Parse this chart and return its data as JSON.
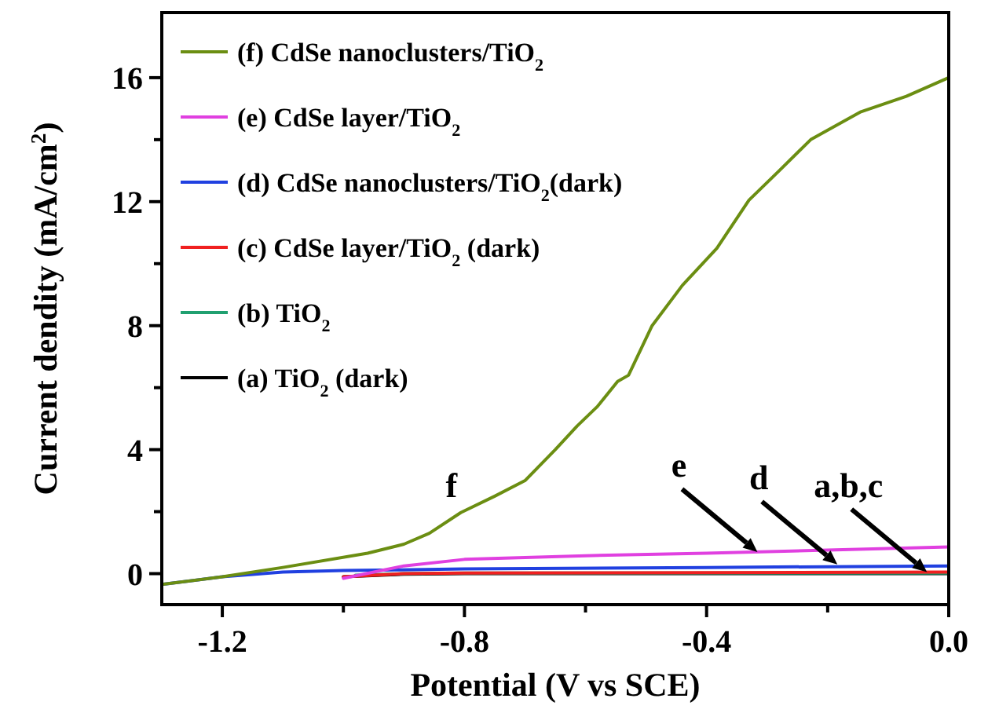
{
  "chart_data": {
    "type": "line",
    "xlabel": "Potential (V vs SCE)",
    "ylabel": "Current dendity (mA/cm$^{2}$)",
    "xlim": [
      -1.3,
      0
    ],
    "ylim": [
      -1,
      18.1
    ],
    "xticks": [
      {
        "value": -1.2,
        "label": "-1.2"
      },
      {
        "value": -1.0,
        "label": null
      },
      {
        "value": -0.8,
        "label": "-0.8"
      },
      {
        "value": -0.6,
        "label": null
      },
      {
        "value": -0.4,
        "label": "-0.4"
      },
      {
        "value": -0.2,
        "label": null
      },
      {
        "value": 0,
        "label": "0.0"
      }
    ],
    "yticks": [
      0,
      {
        "value": 2,
        "label": null
      },
      4,
      {
        "value": 6,
        "label": null
      },
      8,
      {
        "value": 10,
        "label": null
      },
      12,
      {
        "value": 14,
        "label": null
      },
      16
    ],
    "grid": false,
    "legend": "top left",
    "marker": "none",
    "line_style": "solid",
    "series": [
      {
        "name": "(f) CdSe nanoclusters/TiO$_{2}$",
        "color": "#6b8e12",
        "x": [
          -1.3,
          -1.2,
          -1.1,
          -0.96,
          -0.9,
          -0.858,
          -0.806,
          -0.75,
          -0.7,
          -0.65,
          -0.614,
          -0.58,
          -0.547,
          -0.529,
          -0.49,
          -0.44,
          -0.383,
          -0.33,
          -0.28,
          -0.228,
          -0.145,
          -0.07,
          0
        ],
        "values": [
          -0.35,
          -0.1,
          0.2,
          0.66,
          0.95,
          1.3,
          1.97,
          2.5,
          3.0,
          4.0,
          4.76,
          5.4,
          6.2,
          6.4,
          8.0,
          9.3,
          10.5,
          12.05,
          13.0,
          14.0,
          14.9,
          15.4,
          16.0
        ]
      },
      {
        "name": "(e) CdSe layer/TiO$_{2}$",
        "color": "#e040e0",
        "x": [
          -1.0,
          -0.9,
          -0.8,
          -0.6,
          -0.4,
          -0.2,
          0
        ],
        "values": [
          -0.15,
          0.25,
          0.46,
          0.58,
          0.66,
          0.76,
          0.86
        ]
      },
      {
        "name": "(d) CdSe nanoclusters/TiO$_{2}$(dark)",
        "color": "#2040e0",
        "x": [
          -1.3,
          -1.2,
          -1.1,
          -1.0,
          -0.8,
          -0.4,
          0
        ],
        "values": [
          -0.35,
          -0.1,
          0.05,
          0.1,
          0.15,
          0.2,
          0.25
        ]
      },
      {
        "name": "(c) CdSe layer/TiO$_{2}$ (dark)",
        "color": "#f02020",
        "x": [
          -1.0,
          -0.9,
          -0.8,
          -0.4,
          0
        ],
        "values": [
          -0.1,
          0.0,
          0.02,
          0.03,
          0.05
        ]
      },
      {
        "name": "(b) TiO$_{2}$",
        "color": "#20a070",
        "x": [
          -0.98,
          -0.9,
          -0.8,
          -0.4,
          0
        ],
        "values": [
          -0.05,
          0.0,
          0.02,
          0.02,
          0.02
        ]
      },
      {
        "name": "(a) TiO$_{2}$ (dark)",
        "color": "#000000",
        "x": [
          -1.0,
          -0.9,
          -0.8,
          -0.4,
          0
        ],
        "values": [
          -0.1,
          -0.02,
          0.0,
          0.0,
          0.0
        ]
      }
    ],
    "annotations": [
      {
        "text": "f",
        "x": -0.806,
        "y": 1.97
      },
      {
        "text": "e",
        "x": -0.316,
        "y": 0.7
      },
      {
        "text": "d",
        "x": -0.184,
        "y": 0.3
      },
      {
        "text": "a,b,c",
        "x": -0.036,
        "y": 0.05
      }
    ]
  }
}
